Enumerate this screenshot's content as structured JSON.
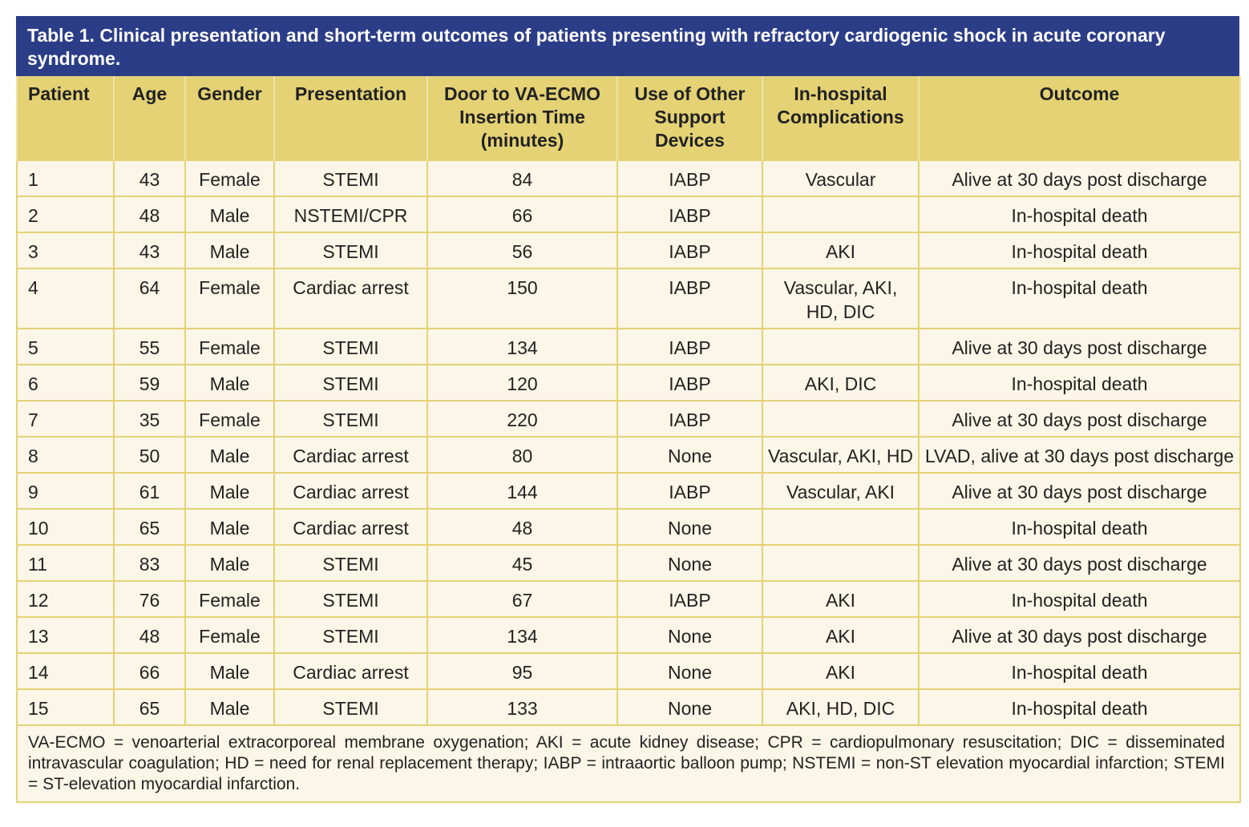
{
  "title": "Table 1. Clinical presentation and short-term outcomes of patients presenting with refractory cardiogenic shock in acute coronary syndrome.",
  "colors": {
    "title_bg": "#2c3d88",
    "header_bg": "#e4d274",
    "cell_bg": "#fcf6e8"
  },
  "headers": [
    "Patient",
    "Age",
    "Gender",
    "Presentation",
    "Door to VA-ECMO Insertion Time (minutes)",
    "Use of Other Support Devices",
    "In-hospital Complications",
    "Outcome"
  ],
  "rows": [
    [
      "1",
      "43",
      "Female",
      "STEMI",
      "84",
      "IABP",
      "Vascular",
      "Alive at 30 days post discharge"
    ],
    [
      "2",
      "48",
      "Male",
      "NSTEMI/CPR",
      "66",
      "IABP",
      "",
      "In-hospital death"
    ],
    [
      "3",
      "43",
      "Male",
      "STEMI",
      "56",
      "IABP",
      "AKI",
      "In-hospital death"
    ],
    [
      "4",
      "64",
      "Female",
      "Cardiac arrest",
      "150",
      "IABP",
      "Vascular, AKI, HD, DIC",
      "In-hospital death"
    ],
    [
      "5",
      "55",
      "Female",
      "STEMI",
      "134",
      "IABP",
      "",
      "Alive at 30 days post discharge"
    ],
    [
      "6",
      "59",
      "Male",
      "STEMI",
      "120",
      "IABP",
      "AKI, DIC",
      "In-hospital death"
    ],
    [
      "7",
      "35",
      "Female",
      "STEMI",
      "220",
      "IABP",
      "",
      "Alive at 30 days post discharge"
    ],
    [
      "8",
      "50",
      "Male",
      "Cardiac arrest",
      "80",
      "None",
      "Vascular, AKI, HD",
      "LVAD, alive at 30 days post discharge"
    ],
    [
      "9",
      "61",
      "Male",
      "Cardiac arrest",
      "144",
      "IABP",
      "Vascular, AKI",
      "Alive at 30 days post discharge"
    ],
    [
      "10",
      "65",
      "Male",
      "Cardiac arrest",
      "48",
      "None",
      "",
      "In-hospital death"
    ],
    [
      "11",
      "83",
      "Male",
      "STEMI",
      "45",
      "None",
      "",
      "Alive at 30 days post discharge"
    ],
    [
      "12",
      "76",
      "Female",
      "STEMI",
      "67",
      "IABP",
      "AKI",
      "In-hospital death"
    ],
    [
      "13",
      "48",
      "Female",
      "STEMI",
      "134",
      "None",
      "AKI",
      "Alive at 30 days post discharge"
    ],
    [
      "14",
      "66",
      "Male",
      "Cardiac arrest",
      "95",
      "None",
      "AKI",
      "In-hospital death"
    ],
    [
      "15",
      "65",
      "Male",
      "STEMI",
      "133",
      "None",
      "AKI, HD, DIC",
      "In-hospital death"
    ]
  ],
  "footnote": "VA-ECMO = venoarterial extracorporeal membrane oxygenation; AKI = acute kidney disease; CPR = cardiopulmonary resuscitation; DIC = disseminated intravascular coagulation; HD = need for renal replacement therapy; IABP = intraaortic balloon pump; NSTEMI = non-ST elevation myocardial infarction; STEMI = ST-elevation myocardial infarction."
}
